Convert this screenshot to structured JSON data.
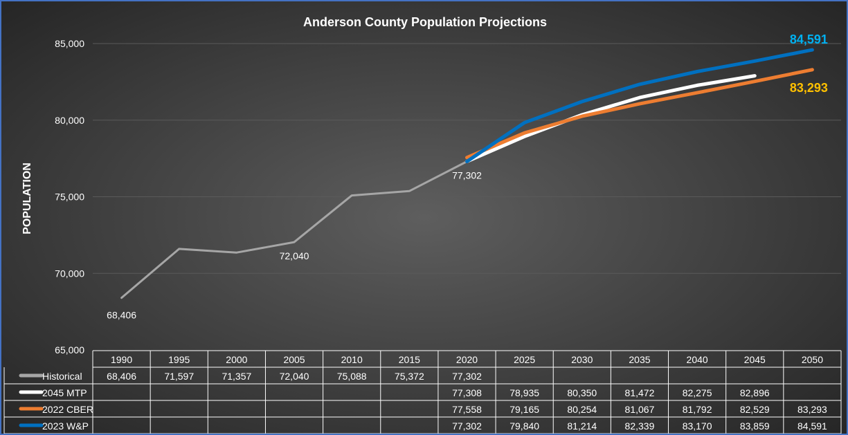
{
  "chart_data": {
    "type": "line",
    "title": "Anderson County Population Projections",
    "ylabel": "POPULATION",
    "xlabel": "",
    "ylim": [
      65000,
      85000
    ],
    "yticks": [
      65000,
      70000,
      75000,
      80000,
      85000
    ],
    "ytick_labels": [
      "65,000",
      "70,000",
      "75,000",
      "80,000",
      "85,000"
    ],
    "grid": true,
    "legend": "data-table",
    "x": [
      1990,
      1995,
      2000,
      2005,
      2010,
      2015,
      2020,
      2025,
      2030,
      2035,
      2040,
      2045,
      2050
    ],
    "x_labels": [
      "1990",
      "1995",
      "2000",
      "2005",
      "2010",
      "2015",
      "2020",
      "2025",
      "2030",
      "2035",
      "2040",
      "2045",
      "2050"
    ],
    "series": [
      {
        "name": "Historical",
        "color": "#a6a6a6",
        "values": [
          68406,
          71597,
          71357,
          72040,
          75088,
          75372,
          77302,
          null,
          null,
          null,
          null,
          null,
          null
        ],
        "cells": [
          "68,406",
          "71,597",
          "71,357",
          "72,040",
          "75,088",
          "75,372",
          "77,302",
          "",
          "",
          "",
          "",
          "",
          ""
        ]
      },
      {
        "name": "2045 MTP",
        "color": "#ffffff",
        "values": [
          null,
          null,
          null,
          null,
          null,
          null,
          77308,
          78935,
          80350,
          81472,
          82275,
          82896,
          null
        ],
        "cells": [
          "",
          "",
          "",
          "",
          "",
          "",
          "77,308",
          "78,935",
          "80,350",
          "81,472",
          "82,275",
          "82,896",
          ""
        ]
      },
      {
        "name": "2022 CBER",
        "color": "#ed7d31",
        "values": [
          null,
          null,
          null,
          null,
          null,
          null,
          77558,
          79165,
          80254,
          81067,
          81792,
          82529,
          83293
        ],
        "cells": [
          "",
          "",
          "",
          "",
          "",
          "",
          "77,558",
          "79,165",
          "80,254",
          "81,067",
          "81,792",
          "82,529",
          "83,293"
        ]
      },
      {
        "name": "2023 W&P",
        "color": "#0070c0",
        "values": [
          null,
          null,
          null,
          null,
          null,
          null,
          77302,
          79840,
          81214,
          82339,
          83170,
          83859,
          84591
        ],
        "cells": [
          "",
          "",
          "",
          "",
          "",
          "",
          "77,302",
          "79,840",
          "81,214",
          "82,339",
          "83,170",
          "83,859",
          "84,591"
        ]
      }
    ],
    "annotations": [
      {
        "text": "68,406",
        "x": 1990,
        "y": 68406,
        "color": "#ffffff"
      },
      {
        "text": "72,040",
        "x": 2005,
        "y": 72040,
        "color": "#ffffff"
      },
      {
        "text": "77,302",
        "x": 2020,
        "y": 77302,
        "color": "#ffffff"
      },
      {
        "text": "84,591",
        "x": 2050,
        "y": 84591,
        "color": "#00b0f0"
      },
      {
        "text": "83,293",
        "x": 2050,
        "y": 83293,
        "color": "#ffc000"
      }
    ]
  }
}
